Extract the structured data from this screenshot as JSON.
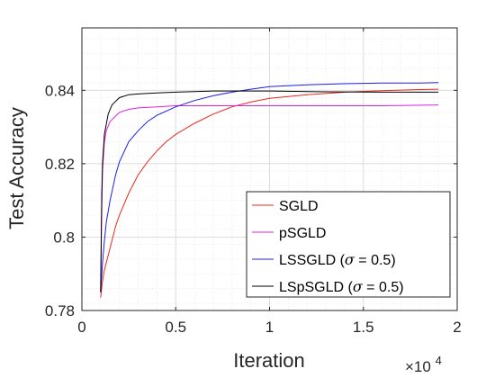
{
  "chart_data": {
    "type": "line",
    "title": "",
    "xlabel": "Iteration",
    "ylabel": "Test Accuracy",
    "x_multiplier_label": "×10",
    "x_multiplier_exp": "4",
    "xlim": [
      0,
      2
    ],
    "ylim": [
      0.78,
      0.857
    ],
    "x_ticks": [
      0,
      0.5,
      1,
      1.5,
      2
    ],
    "x_tick_labels": [
      "0",
      "0.5",
      "1",
      "1.5",
      "2"
    ],
    "y_ticks": [
      0.78,
      0.8,
      0.82,
      0.84
    ],
    "y_tick_labels": [
      "0.78",
      "0.8",
      "0.82",
      "0.84"
    ],
    "grid": true,
    "minor_grid": true,
    "legend_position": "bottom-right",
    "series": [
      {
        "name": "SGLD",
        "color": "#e8291c",
        "x": [
          0.1,
          0.11,
          0.12,
          0.14,
          0.16,
          0.18,
          0.2,
          0.25,
          0.3,
          0.35,
          0.4,
          0.45,
          0.5,
          0.6,
          0.7,
          0.8,
          0.9,
          1.0,
          1.2,
          1.4,
          1.6,
          1.8,
          1.9
        ],
        "y": [
          0.7835,
          0.788,
          0.791,
          0.795,
          0.799,
          0.803,
          0.806,
          0.812,
          0.817,
          0.8205,
          0.8235,
          0.826,
          0.828,
          0.831,
          0.8335,
          0.8355,
          0.8368,
          0.8378,
          0.8388,
          0.8395,
          0.8399,
          0.8402,
          0.8403
        ]
      },
      {
        "name": "pSGLD",
        "color": "#e020e0",
        "x": [
          0.1,
          0.105,
          0.11,
          0.12,
          0.13,
          0.15,
          0.18,
          0.2,
          0.25,
          0.3,
          0.4,
          0.5,
          0.7,
          1.0,
          1.3,
          1.6,
          1.9
        ],
        "y": [
          0.785,
          0.805,
          0.818,
          0.826,
          0.829,
          0.8315,
          0.833,
          0.834,
          0.8348,
          0.8352,
          0.8355,
          0.8358,
          0.8358,
          0.8358,
          0.8358,
          0.8358,
          0.836
        ]
      },
      {
        "name": "LSSGLD",
        "label_prefix": "LSSGLD (",
        "label_sym": "σ",
        "label_suffix": " = 0.5)",
        "color": "#1c1cf0",
        "x": [
          0.1,
          0.11,
          0.12,
          0.13,
          0.15,
          0.18,
          0.2,
          0.25,
          0.3,
          0.35,
          0.4,
          0.5,
          0.6,
          0.7,
          0.8,
          0.9,
          1.0,
          1.2,
          1.4,
          1.6,
          1.8,
          1.9
        ],
        "y": [
          0.785,
          0.793,
          0.799,
          0.804,
          0.81,
          0.817,
          0.8205,
          0.826,
          0.829,
          0.8315,
          0.8332,
          0.8355,
          0.8372,
          0.8385,
          0.8395,
          0.8403,
          0.841,
          0.8415,
          0.8418,
          0.842,
          0.842,
          0.8421
        ]
      },
      {
        "name": "LSpSGLD",
        "label_prefix": "LSpSGLD (",
        "label_sym": "σ",
        "label_suffix": " = 0.5)",
        "color": "#000000",
        "x": [
          0.1,
          0.103,
          0.106,
          0.11,
          0.12,
          0.14,
          0.16,
          0.2,
          0.25,
          0.3,
          0.4,
          0.5,
          0.7,
          1.0,
          1.3,
          1.6,
          1.9
        ],
        "y": [
          0.785,
          0.8,
          0.812,
          0.82,
          0.828,
          0.8335,
          0.836,
          0.838,
          0.8388,
          0.839,
          0.8393,
          0.8395,
          0.8398,
          0.8398,
          0.8396,
          0.8395,
          0.8395
        ]
      }
    ]
  }
}
